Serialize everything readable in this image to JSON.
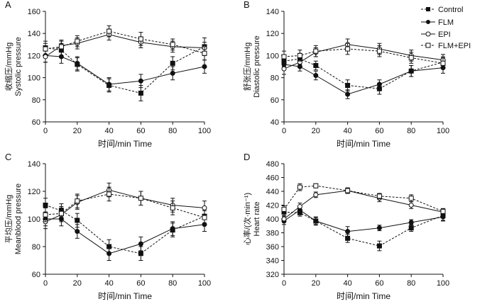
{
  "legend": {
    "entries": [
      {
        "name": "Control",
        "style": "control"
      },
      {
        "name": "FLM",
        "style": "flm"
      },
      {
        "name": "EPI",
        "style": "epi"
      },
      {
        "name": "FLM+EPI",
        "style": "flmepi"
      }
    ]
  },
  "chart_data": [
    {
      "panel": "A",
      "type": "line",
      "ylabel_cn": "收缩压/mmHg",
      "ylabel_en": "Systolic pressure",
      "xlabel": "时间/min Time",
      "x": [
        0,
        10,
        20,
        40,
        60,
        80,
        100
      ],
      "xlim": [
        0,
        100
      ],
      "xticks": [
        0,
        20,
        40,
        60,
        80,
        100
      ],
      "ylim": [
        60,
        160
      ],
      "yticks": [
        60,
        80,
        100,
        120,
        140,
        160
      ],
      "series": [
        {
          "name": "Control",
          "values": [
            127,
            125,
            112,
            93,
            86,
            113,
            128
          ],
          "err": [
            6,
            6,
            6,
            6,
            7,
            6,
            8
          ]
        },
        {
          "name": "FLM",
          "values": [
            120,
            119,
            113,
            94,
            97,
            104,
            110
          ],
          "err": [
            6,
            6,
            6,
            6,
            6,
            6,
            6
          ]
        },
        {
          "name": "EPI",
          "values": [
            119,
            129,
            131,
            139,
            132,
            128,
            127
          ],
          "err": [
            5,
            5,
            5,
            5,
            5,
            5,
            5
          ]
        },
        {
          "name": "FLM+EPI",
          "values": [
            126,
            128,
            133,
            142,
            135,
            130,
            122
          ],
          "err": [
            5,
            5,
            5,
            5,
            6,
            5,
            6
          ]
        }
      ]
    },
    {
      "panel": "B",
      "type": "line",
      "ylabel_cn": "舒张压/mmHg",
      "ylabel_en": "Diastolic pressure",
      "xlabel": "时间/min Time",
      "x": [
        0,
        10,
        20,
        40,
        60,
        80,
        100
      ],
      "xlim": [
        0,
        100
      ],
      "xticks": [
        0,
        20,
        40,
        60,
        80,
        100
      ],
      "ylim": [
        40,
        140
      ],
      "yticks": [
        40,
        60,
        80,
        100,
        120,
        140
      ],
      "series": [
        {
          "name": "Control",
          "values": [
            95,
            97,
            91,
            73,
            70,
            86,
            94
          ],
          "err": [
            5,
            5,
            4,
            5,
            5,
            5,
            5
          ]
        },
        {
          "name": "FLM",
          "values": [
            92,
            90,
            82,
            65,
            74,
            86,
            89
          ],
          "err": [
            4,
            4,
            4,
            4,
            4,
            5,
            5
          ]
        },
        {
          "name": "EPI",
          "values": [
            88,
            94,
            103,
            110,
            106,
            100,
            96
          ],
          "err": [
            5,
            5,
            4,
            5,
            5,
            5,
            5
          ]
        },
        {
          "name": "FLM+EPI",
          "values": [
            99,
            100,
            104,
            106,
            104,
            98,
            93
          ],
          "err": [
            5,
            5,
            5,
            5,
            5,
            5,
            5
          ]
        }
      ]
    },
    {
      "panel": "C",
      "type": "line",
      "ylabel_cn": "平均压/mmHg",
      "ylabel_en": "Meanblood pressure",
      "xlabel": "时间/min Time",
      "x": [
        0,
        10,
        20,
        40,
        60,
        80,
        100
      ],
      "xlim": [
        0,
        100
      ],
      "xticks": [
        0,
        20,
        40,
        60,
        80,
        100
      ],
      "ylim": [
        60,
        140
      ],
      "yticks": [
        60,
        80,
        100,
        120,
        140
      ],
      "series": [
        {
          "name": "Control",
          "values": [
            110,
            106,
            99,
            80,
            75,
            92,
            102
          ],
          "err": [
            5,
            5,
            5,
            5,
            5,
            5,
            5
          ]
        },
        {
          "name": "FLM",
          "values": [
            100,
            100,
            91,
            75,
            82,
            93,
            96
          ],
          "err": [
            5,
            5,
            5,
            5,
            5,
            5,
            5
          ]
        },
        {
          "name": "EPI",
          "values": [
            98,
            103,
            112,
            121,
            115,
            110,
            108
          ],
          "err": [
            5,
            5,
            5,
            5,
            5,
            5,
            5
          ]
        },
        {
          "name": "FLM+EPI",
          "values": [
            103,
            104,
            113,
            118,
            115,
            108,
            101
          ],
          "err": [
            5,
            5,
            5,
            5,
            5,
            5,
            5
          ]
        }
      ]
    },
    {
      "panel": "D",
      "type": "line",
      "ylabel_cn": "心率/(次·min⁻¹)",
      "ylabel_en": "Heart rate",
      "xlabel": "时间/min Time",
      "x": [
        0,
        10,
        20,
        40,
        60,
        80,
        100
      ],
      "xlim": [
        0,
        100
      ],
      "xticks": [
        0,
        20,
        40,
        60,
        80,
        100
      ],
      "ylim": [
        320,
        480
      ],
      "yticks": [
        320,
        340,
        360,
        380,
        400,
        420,
        440,
        460,
        480
      ],
      "series": [
        {
          "name": "Control",
          "values": [
            410,
            409,
            397,
            372,
            361,
            387,
            405
          ],
          "err": [
            6,
            5,
            6,
            6,
            7,
            5,
            7
          ]
        },
        {
          "name": "FLM",
          "values": [
            397,
            413,
            397,
            382,
            387,
            395,
            403
          ],
          "err": [
            5,
            5,
            5,
            7,
            4,
            4,
            6
          ]
        },
        {
          "name": "EPI",
          "values": [
            400,
            418,
            435,
            441,
            430,
            420,
            410
          ],
          "err": [
            5,
            5,
            4,
            4,
            5,
            5,
            5
          ]
        },
        {
          "name": "FLM+EPI",
          "values": [
            414,
            446,
            448,
            441,
            433,
            430,
            411
          ],
          "err": [
            5,
            5,
            3,
            4,
            4,
            5,
            4
          ]
        }
      ]
    }
  ]
}
